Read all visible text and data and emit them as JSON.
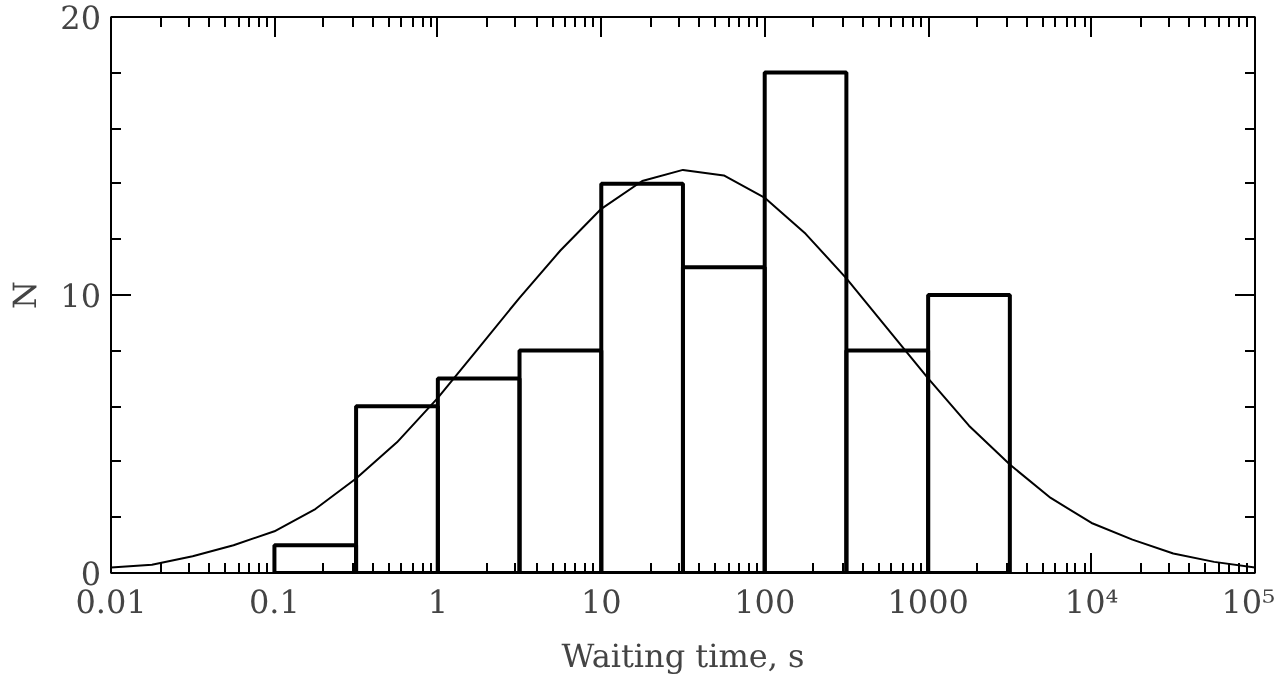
{
  "chart_data": {
    "type": "histogram",
    "xlabel": "Waiting time, s",
    "ylabel": "N",
    "log": "x",
    "grid": false,
    "bins": [
      0.1,
      0.316,
      1,
      3.16,
      10,
      31.6,
      100,
      316,
      1000,
      3162
    ],
    "values": [
      1,
      6,
      7,
      8,
      14,
      11,
      18,
      8,
      10
    ],
    "color": "#000000",
    "series": [
      {
        "type": "line",
        "color": "#000000",
        "x": [
          0.01,
          0.0178,
          0.0316,
          0.0562,
          0.1,
          0.178,
          0.316,
          0.562,
          1,
          1.78,
          3.16,
          5.62,
          10,
          17.8,
          31.6,
          56.2,
          100,
          178,
          316,
          562,
          1000,
          1778,
          3162,
          5623,
          10000,
          17783,
          31623,
          56234,
          100000
        ],
        "values": [
          0.2,
          0.3,
          0.6,
          1.0,
          1.5,
          2.3,
          3.4,
          4.7,
          6.3,
          8.1,
          9.9,
          11.6,
          13.1,
          14.1,
          14.5,
          14.3,
          13.5,
          12.2,
          10.6,
          8.8,
          7.0,
          5.3,
          3.9,
          2.7,
          1.8,
          1.2,
          0.7,
          0.4,
          0.2
        ]
      }
    ],
    "xlim": [
      0.01,
      100000
    ],
    "ylim": [
      0,
      20
    ],
    "xticks": [
      0.01,
      0.1,
      1,
      10,
      100,
      1000,
      {
        "value": 10000,
        "label": "10⁴"
      },
      {
        "value": 100000,
        "label": "10⁵"
      }
    ],
    "yticks": [
      0,
      10,
      20
    ]
  }
}
